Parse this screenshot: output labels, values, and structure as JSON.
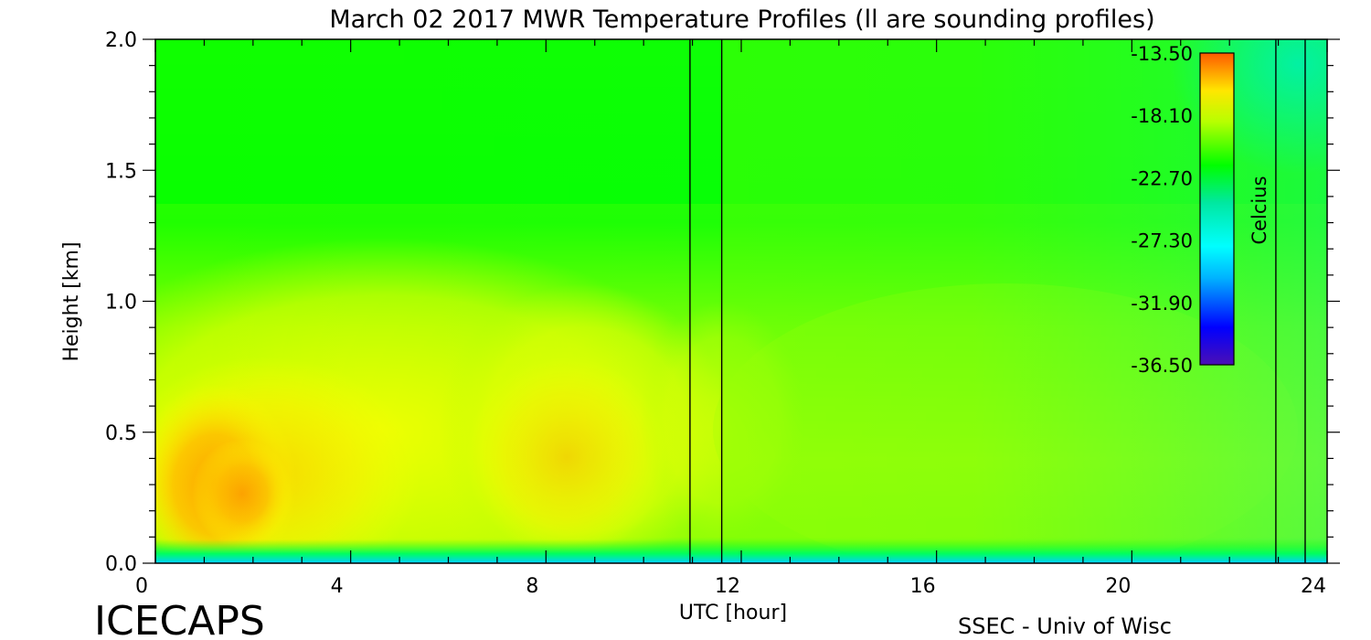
{
  "chart_data": {
    "type": "heatmap",
    "title": "March 02 2017 MWR Temperature Profiles (ll are sounding profiles)",
    "xlabel": "UTC [hour]",
    "ylabel": "Height [km]",
    "xlim": [
      0,
      24
    ],
    "ylim": [
      0,
      2.0
    ],
    "xticks": [
      "0",
      "4",
      "8",
      "12",
      "16",
      "20",
      "24"
    ],
    "yticks": [
      "0.0",
      "0.5",
      "1.0",
      "1.5",
      "2.0"
    ],
    "colorbar": {
      "label": "Celcius",
      "range": [
        -36.5,
        -13.5
      ],
      "ticks": [
        "-13.50",
        "-18.10",
        "-22.70",
        "-27.30",
        "-31.90",
        "-36.50"
      ]
    },
    "sounding_lines_utc": [
      10.95,
      11.6,
      22.95,
      23.55
    ],
    "field": {
      "description_levels_km": [
        0.0,
        0.25,
        0.5,
        0.75,
        1.0,
        1.5,
        2.0
      ],
      "approx_celsius_samples": [
        {
          "utc": 1,
          "profile": [
            -26.0,
            -14.5,
            -16.0,
            -18.0,
            -20.0,
            -22.5,
            -23.0
          ]
        },
        {
          "utc": 2,
          "profile": [
            -26.0,
            -14.0,
            -16.5,
            -18.5,
            -20.5,
            -22.5,
            -23.0
          ]
        },
        {
          "utc": 5,
          "profile": [
            -26.0,
            -16.5,
            -18.0,
            -19.5,
            -20.5,
            -22.5,
            -23.0
          ]
        },
        {
          "utc": 9,
          "profile": [
            -26.0,
            -15.5,
            -16.5,
            -19.0,
            -20.5,
            -22.5,
            -23.0
          ]
        },
        {
          "utc": 14,
          "profile": [
            -27.0,
            -20.0,
            -20.5,
            -21.0,
            -21.5,
            -22.5,
            -23.5
          ]
        },
        {
          "utc": 20,
          "profile": [
            -28.0,
            -20.5,
            -21.0,
            -21.5,
            -22.0,
            -23.0,
            -25.0
          ]
        },
        {
          "utc": 23.8,
          "profile": [
            -31.0,
            -21.0,
            -21.5,
            -22.0,
            -22.5,
            -24.0,
            -27.0
          ]
        }
      ]
    }
  },
  "footer": {
    "brand": "ICECAPS",
    "credit": "SSEC - Univ of Wisc"
  }
}
